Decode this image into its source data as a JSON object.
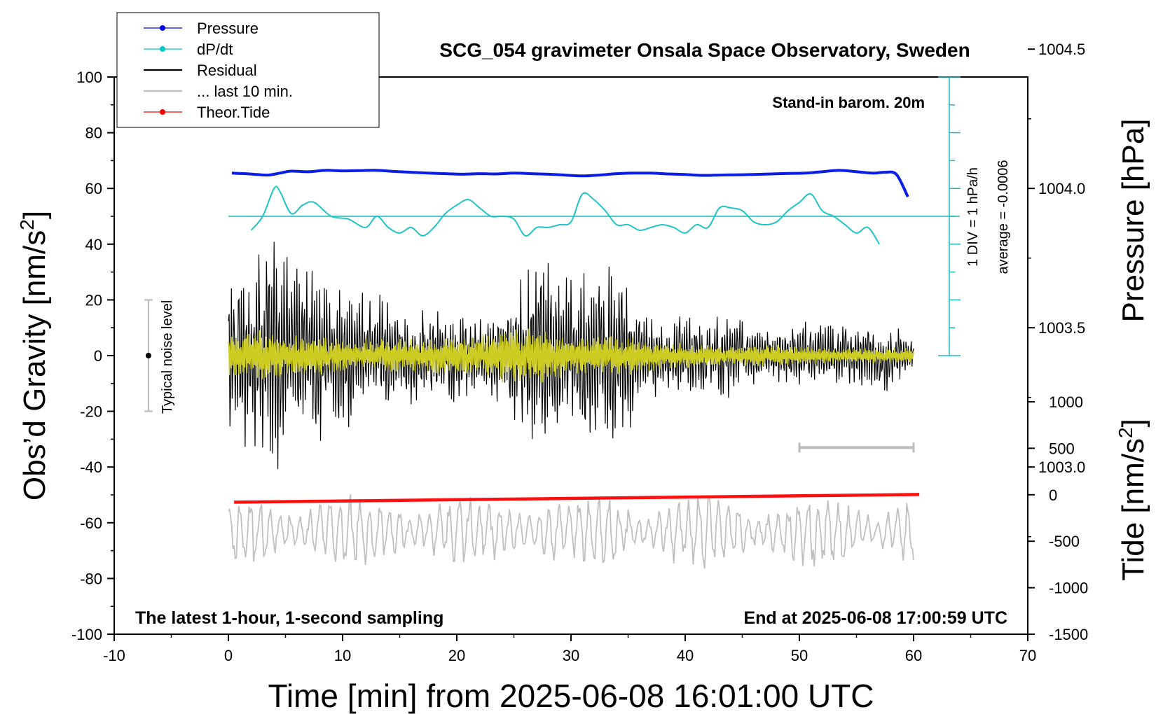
{
  "chart_data": {
    "type": "line",
    "title": "SCG_054 gravimeter Onsala Space Observatory, Sweden",
    "xlabel": "Time [min] from 2025-06-08 16:01:00 UTC",
    "ylabel_left_main": "Obs’d Gravity [nm/s",
    "ylabel_left_sup": "2",
    "ylabel_left_tail": "]",
    "ylabel_right_top": "Pressure [hPa]",
    "ylabel_right_bottom_main": "Tide [nm/s",
    "ylabel_right_bottom_sup": "2",
    "ylabel_right_bottom_tail": "]",
    "xlim": [
      -10,
      70
    ],
    "ylim": [
      -100,
      100
    ],
    "x_ticks": [
      "-10",
      "0",
      "10",
      "20",
      "30",
      "40",
      "50",
      "60",
      "70"
    ],
    "y_ticks": [
      "100",
      "80",
      "60",
      "40",
      "20",
      "0",
      "-20",
      "-40",
      "-60",
      "-80",
      "-100"
    ],
    "pressure_axis": {
      "ticks": [
        "1004.5",
        "1004.0",
        "1003.5",
        "1003.0"
      ],
      "values": [
        1004.5,
        1004.0,
        1003.5,
        1003.0
      ],
      "gravity_at_1004": 60,
      "gravity_per_hpa": 100
    },
    "tide_axis": {
      "ticks": [
        "1000",
        "500",
        "0",
        "-500",
        "-1000",
        "-1500"
      ],
      "values": [
        1000,
        500,
        0,
        -500,
        -1000,
        -1500
      ],
      "ylim": [
        -1500,
        1000
      ]
    },
    "legend": [
      {
        "label": "Pressure",
        "color": "#0000ff",
        "marker": true
      },
      {
        "label": "dP/dt",
        "color": "#00c8c8",
        "marker": true
      },
      {
        "label": "Residual",
        "color": "#000000",
        "marker": false
      },
      {
        "label": "... last 10 min.",
        "color": "#c0c0c0",
        "marker": false
      },
      {
        "label": "Theor.Tide",
        "color": "#ff0000",
        "marker": true
      }
    ],
    "annotations": {
      "barometer": "Stand-in barom. 20m",
      "dpdt_scale": "1 DIV = 1 hPa/h",
      "dpdt_average": "average = -0.0006",
      "noise": "Typical noise level",
      "bottom_left": "The latest 1-hour, 1-second sampling",
      "bottom_right": "End at 2025-06-08 17:00:59 UTC"
    },
    "noise_bar": {
      "x": -7,
      "center": 0,
      "half_range": 20
    },
    "window_bar": {
      "x_start": 50,
      "x_end": 60,
      "y": -33
    },
    "dpdt_baseline": 50,
    "series": [
      {
        "name": "Pressure",
        "color": "#0000ff",
        "unit": "gravity-axis",
        "x": [
          0.3,
          1.5,
          2.5,
          3.5,
          4.5,
          5.5,
          7,
          8.5,
          10,
          11.5,
          13,
          14.5,
          16,
          17.5,
          19,
          20.5,
          22,
          23.5,
          25,
          26.5,
          28,
          29.5,
          31,
          32.5,
          34,
          35.5,
          37,
          38.5,
          40,
          41.5,
          43,
          44.5,
          46,
          47.5,
          49,
          50.5,
          52,
          53.5,
          55,
          56.5,
          57.5,
          58.5,
          59.5
        ],
        "values": [
          65.5,
          65.3,
          65,
          64.8,
          65.5,
          66.2,
          66,
          66.5,
          66.3,
          66.4,
          66.5,
          66.1,
          65.8,
          65.5,
          65.3,
          65.1,
          65.3,
          65.2,
          65.5,
          65.3,
          65.1,
          64.8,
          64.5,
          64.8,
          65.3,
          65.5,
          65.5,
          65.2,
          65,
          64.7,
          64.8,
          64.9,
          65,
          65.2,
          65.4,
          65.5,
          66,
          66.5,
          66,
          65.5,
          65.8,
          65,
          57
        ]
      },
      {
        "name": "dP/dt",
        "color": "#00c8c8",
        "unit": "gravity-axis",
        "x": [
          2,
          3,
          4,
          4.5,
          5.5,
          6.5,
          7.5,
          9,
          10.5,
          12,
          13,
          14,
          15,
          16,
          17,
          18,
          19,
          20,
          21,
          22,
          23,
          24,
          25,
          26,
          27,
          28,
          29,
          30,
          31,
          32,
          33,
          34,
          35,
          36,
          37,
          38,
          39,
          40,
          41,
          42,
          43,
          44,
          45,
          46,
          47,
          48,
          49,
          50,
          51,
          52,
          53,
          54,
          55,
          56,
          57
        ],
        "values": [
          45,
          50,
          60,
          59,
          51,
          54,
          55,
          50,
          49,
          46,
          50,
          46,
          44,
          46,
          43,
          46,
          51,
          54,
          56,
          53,
          50,
          50,
          49,
          43,
          46,
          46,
          47,
          48,
          58,
          56,
          52,
          47,
          47,
          45,
          46,
          47,
          46,
          44,
          47,
          46,
          53,
          53,
          52,
          48,
          47,
          48,
          52,
          55,
          58,
          52,
          50,
          47,
          44,
          46,
          40
        ]
      },
      {
        "name": "Residual",
        "color": "#000000",
        "unit": "gravity-axis",
        "x": [
          0,
          60
        ],
        "values": [
          0,
          0
        ],
        "envelope": [
          [
            0,
            32
          ],
          [
            2,
            38
          ],
          [
            4,
            45
          ],
          [
            6,
            38
          ],
          [
            8,
            32
          ],
          [
            10,
            28
          ],
          [
            12,
            25
          ],
          [
            14,
            22
          ],
          [
            16,
            20
          ],
          [
            18,
            18
          ],
          [
            20,
            18
          ],
          [
            22,
            16
          ],
          [
            24,
            20
          ],
          [
            26,
            37
          ],
          [
            28,
            42
          ],
          [
            30,
            28
          ],
          [
            32,
            32
          ],
          [
            34,
            40
          ],
          [
            36,
            18
          ],
          [
            38,
            15
          ],
          [
            40,
            18
          ],
          [
            42,
            14
          ],
          [
            44,
            16
          ],
          [
            46,
            12
          ],
          [
            48,
            10
          ],
          [
            50,
            14
          ],
          [
            52,
            13
          ],
          [
            54,
            12
          ],
          [
            56,
            12
          ],
          [
            58,
            14
          ],
          [
            60,
            5
          ]
        ]
      },
      {
        "name": "Residual (filtered)",
        "color": "#cccc00",
        "unit": "gravity-axis",
        "x": [
          0,
          60
        ],
        "values": [
          0,
          0
        ],
        "envelope": [
          [
            0,
            8
          ],
          [
            3,
            10
          ],
          [
            6,
            8
          ],
          [
            10,
            6
          ],
          [
            14,
            6
          ],
          [
            18,
            7
          ],
          [
            22,
            8
          ],
          [
            26,
            12
          ],
          [
            28,
            10
          ],
          [
            30,
            7
          ],
          [
            34,
            8
          ],
          [
            38,
            5
          ],
          [
            42,
            4
          ],
          [
            46,
            4
          ],
          [
            50,
            4
          ],
          [
            54,
            3
          ],
          [
            58,
            3
          ],
          [
            60,
            3
          ]
        ]
      },
      {
        "name": "... last 10 min.",
        "color": "#c0c0c0",
        "unit": "gravity-axis",
        "x": [
          0,
          60
        ],
        "center": -63,
        "amplitude": 10
      },
      {
        "name": "Theor.Tide",
        "color": "#ff0000",
        "unit": "tide-axis",
        "x": [
          0.5,
          60.5
        ],
        "values": [
          -80,
          3
        ]
      }
    ]
  }
}
